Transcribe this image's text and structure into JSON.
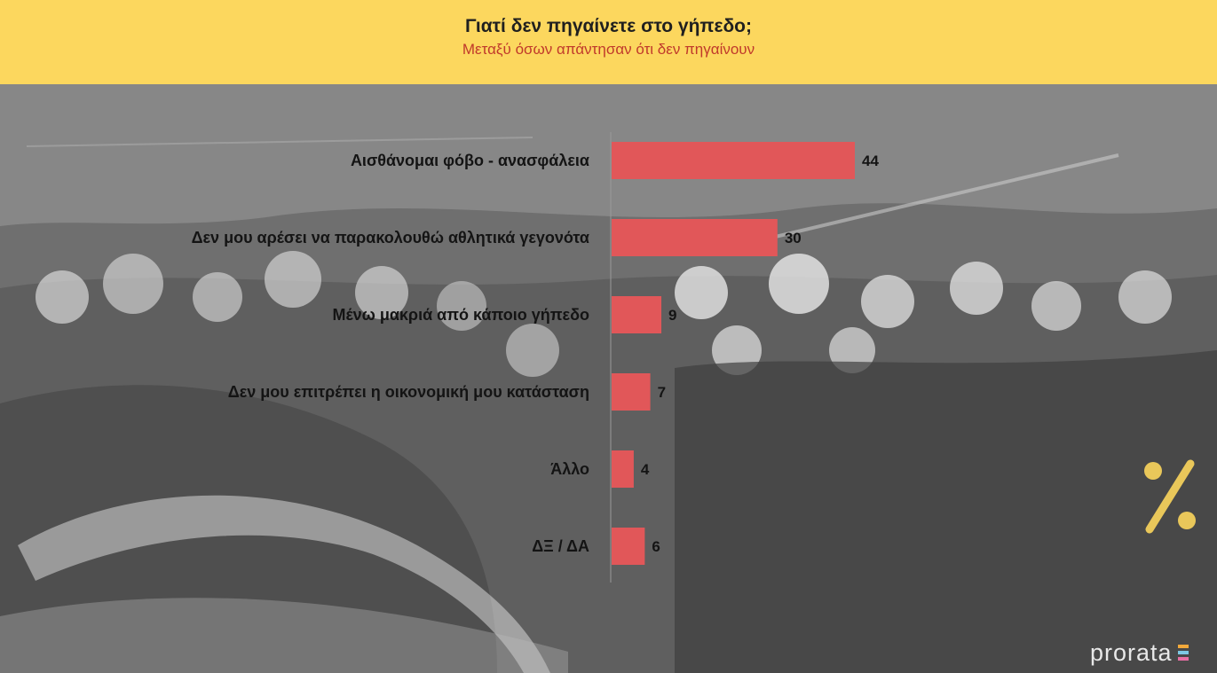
{
  "header": {
    "title": "Γιατί δεν πηγαίνετε στο γήπεδο;",
    "subtitle": "Μεταξύ όσων απάντησαν ότι δεν πηγαίνουν"
  },
  "chart_data": {
    "type": "bar",
    "orientation": "horizontal",
    "categories": [
      "Αισθάνομαι φόβο - ανασφάλεια",
      "Δεν μου αρέσει να παρακολουθώ  αθλητικά γεγονότα",
      "Μένω μακριά από κάποιο γήπεδο",
      "Δεν μου επιτρέπει η οικονομική μου κατάσταση",
      "Άλλο",
      "ΔΞ / ΔΑ"
    ],
    "values": [
      44,
      30,
      9,
      7,
      4,
      6
    ],
    "data_labels": [
      "44",
      "30",
      "9",
      "7",
      "4",
      "6"
    ],
    "bar_color": "#e15759",
    "xlim": [
      0,
      44
    ],
    "grid": false,
    "legend": "none"
  },
  "decor": {
    "percent_icon": "percent-icon",
    "percent_color": "#e9c75a"
  },
  "brand": {
    "name": "prorata",
    "mark_colors": [
      "#f2a93b",
      "#7ec8e3",
      "#e86fa3"
    ]
  }
}
